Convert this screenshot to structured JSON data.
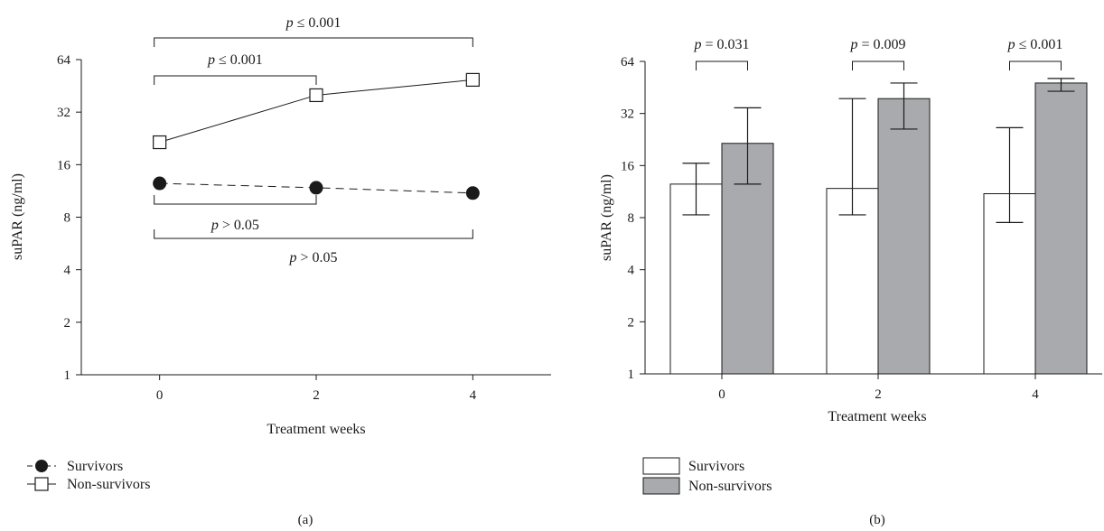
{
  "chart_data": [
    {
      "panel": "(a)",
      "type": "line",
      "xlabel": "Treatment weeks",
      "ylabel": "suPAR (ng/ml)",
      "x": [
        0,
        2,
        4
      ],
      "x_ticks": [
        "0",
        "2",
        "4"
      ],
      "xlim": [
        -1,
        5
      ],
      "yscale": "log2",
      "ylim": [
        1,
        64
      ],
      "y_ticks": [
        "1",
        "2",
        "4",
        "8",
        "16",
        "32",
        "64"
      ],
      "grid": false,
      "legend_position": "bottom-left",
      "series": [
        {
          "name": "Survivors",
          "values": [
            12.5,
            11.8,
            11.0
          ],
          "marker": "filled-circle",
          "line": "dashed"
        },
        {
          "name": "Non-survivors",
          "values": [
            21.5,
            40.0,
            49.0
          ],
          "marker": "open-square",
          "line": "solid"
        }
      ],
      "annotations": [
        {
          "text": "p ≤ 0.001",
          "x_from": 0,
          "x_to": 4,
          "side": "above"
        },
        {
          "text": "p ≤ 0.001",
          "x_from": 0,
          "x_to": 2,
          "side": "above"
        },
        {
          "text": "p > 0.05",
          "x_from": 0,
          "x_to": 2,
          "side": "below"
        },
        {
          "text": "p > 0.05",
          "x_from": 0,
          "x_to": 4,
          "side": "below"
        }
      ]
    },
    {
      "panel": "(b)",
      "type": "bar",
      "xlabel": "Treatment weeks",
      "ylabel": "suPAR (ng/ml)",
      "categories": [
        "0",
        "2",
        "4"
      ],
      "yscale": "log2",
      "ylim": [
        1,
        64
      ],
      "y_ticks": [
        "1",
        "2",
        "4",
        "8",
        "16",
        "32",
        "64"
      ],
      "grid": false,
      "legend_position": "bottom-left",
      "series": [
        {
          "name": "Survivors",
          "values": [
            12.5,
            11.8,
            11.0
          ],
          "error_low": [
            8.3,
            8.3,
            7.5
          ],
          "error_high": [
            16.5,
            39.0,
            26.5
          ],
          "color": "#ffffff"
        },
        {
          "name": "Non-survivors",
          "values": [
            21.5,
            39.0,
            48.0
          ],
          "error_low": [
            12.5,
            26.0,
            43.0
          ],
          "error_high": [
            34.5,
            48.0,
            51.0
          ],
          "color": "#a9aaae"
        }
      ],
      "annotations": [
        {
          "text": "p = 0.031",
          "category": "0"
        },
        {
          "text": "p = 0.009",
          "category": "2"
        },
        {
          "text": "p ≤ 0.001",
          "category": "4"
        }
      ]
    }
  ]
}
